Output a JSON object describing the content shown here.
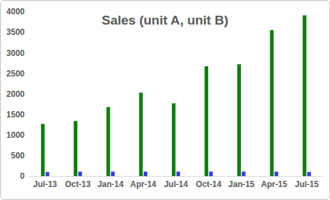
{
  "chart_data": {
    "type": "bar",
    "title": "Sales (unit A, unit B)",
    "categories": [
      "Jul-13",
      "Oct-13",
      "Jan-14",
      "Apr-14",
      "Jul-14",
      "Oct-14",
      "Jan-15",
      "Apr-15",
      "Jul-15"
    ],
    "series": [
      {
        "color": "#0f7d0f",
        "values": [
          1270,
          1340,
          1680,
          2030,
          1770,
          2670,
          2720,
          3550,
          3910
        ]
      },
      {
        "color": "#3a3af0",
        "values": [
          100,
          110,
          110,
          110,
          110,
          110,
          110,
          110,
          100
        ]
      }
    ],
    "ylim": [
      0,
      4000
    ],
    "yticks": [
      0,
      500,
      1000,
      1500,
      2000,
      2500,
      3000,
      3500,
      4000
    ],
    "grid": false,
    "legend": false
  }
}
